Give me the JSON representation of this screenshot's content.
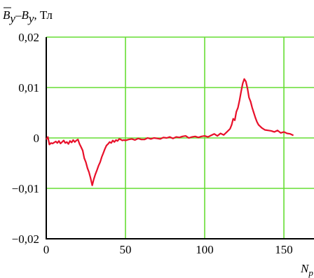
{
  "chart_data": {
    "type": "line",
    "title": "",
    "ylabel": {
      "bar_symbol": "B",
      "bar_sub": "y",
      "minus": "–",
      "symbol": "B",
      "sub": "y",
      "unit": ", Тл"
    },
    "xlabel": {
      "symbol": "N",
      "sub": "p"
    },
    "xlim": [
      0,
      160
    ],
    "ylim": [
      -0.02,
      0.02
    ],
    "x_ticks": [
      0,
      50,
      100,
      150
    ],
    "x_tick_labels": [
      "0",
      "50",
      "100",
      "150"
    ],
    "y_ticks": [
      0.02,
      0.01,
      0,
      -0.01,
      -0.02
    ],
    "y_tick_labels": [
      "0,02",
      "0,01",
      "0",
      "−0,01",
      "−0,02"
    ],
    "grid": true,
    "colors": {
      "grid": "#66dd33",
      "series": "#e8102a",
      "axes": "#000000"
    },
    "series": [
      {
        "x": [
          0,
          1,
          2,
          3,
          4,
          5,
          6,
          7,
          8,
          9,
          10,
          11,
          12,
          13,
          14,
          15,
          16,
          17,
          18,
          19,
          20,
          21,
          22,
          23,
          24,
          25,
          26,
          27,
          28,
          29,
          30,
          31,
          32,
          33,
          34,
          35,
          36,
          37,
          38,
          39,
          40,
          41,
          42,
          43,
          44,
          45,
          46,
          47,
          48,
          49,
          50,
          52,
          54,
          56,
          58,
          60,
          62,
          64,
          66,
          68,
          70,
          72,
          74,
          76,
          78,
          80,
          82,
          84,
          86,
          88,
          90,
          92,
          94,
          96,
          98,
          100,
          102,
          104,
          106,
          108,
          110,
          112,
          114,
          116,
          117,
          118,
          119,
          120,
          121,
          122,
          123,
          124,
          125,
          126,
          127,
          128,
          129,
          130,
          131,
          132,
          133,
          134,
          136,
          138,
          140,
          142,
          144,
          146,
          148,
          150,
          152,
          154,
          156
        ],
        "y": [
          -0.0003,
          0.0002,
          -0.0013,
          -0.001,
          -0.0011,
          -0.0009,
          -0.0007,
          -0.001,
          -0.0006,
          -0.0011,
          -0.0008,
          -0.0005,
          -0.001,
          -0.0008,
          -0.0012,
          -0.0006,
          -0.0009,
          -0.0004,
          -0.0008,
          -0.0005,
          -0.0003,
          -0.0012,
          -0.0018,
          -0.0025,
          -0.004,
          -0.0048,
          -0.006,
          -0.0068,
          -0.008,
          -0.0094,
          -0.0082,
          -0.0072,
          -0.0064,
          -0.0055,
          -0.0048,
          -0.0038,
          -0.003,
          -0.0022,
          -0.0015,
          -0.0012,
          -0.0008,
          -0.001,
          -0.0005,
          -0.0008,
          -0.0004,
          -0.0006,
          -0.0002,
          -0.0003,
          -0.0005,
          -0.0004,
          -0.0005,
          -0.0003,
          -0.0002,
          -0.0004,
          -0.0001,
          -0.0003,
          -0.0003,
          0.0,
          -0.0002,
          0.0,
          -0.0001,
          -0.0002,
          0.0001,
          0.0,
          0.0002,
          -0.0001,
          0.0002,
          0.0001,
          0.0003,
          0.0004,
          0.0,
          0.0002,
          0.0003,
          0.0001,
          0.0003,
          0.0004,
          0.0002,
          0.0005,
          0.0008,
          0.0004,
          0.0009,
          0.0006,
          0.0012,
          0.0018,
          0.0026,
          0.0038,
          0.0035,
          0.0052,
          0.006,
          0.0075,
          0.0092,
          0.0108,
          0.0117,
          0.0112,
          0.0098,
          0.008,
          0.0072,
          0.006,
          0.005,
          0.004,
          0.0032,
          0.0026,
          0.002,
          0.0016,
          0.0015,
          0.0014,
          0.0012,
          0.0015,
          0.001,
          0.0012,
          0.0009,
          0.0008,
          0.0005
        ]
      }
    ]
  }
}
